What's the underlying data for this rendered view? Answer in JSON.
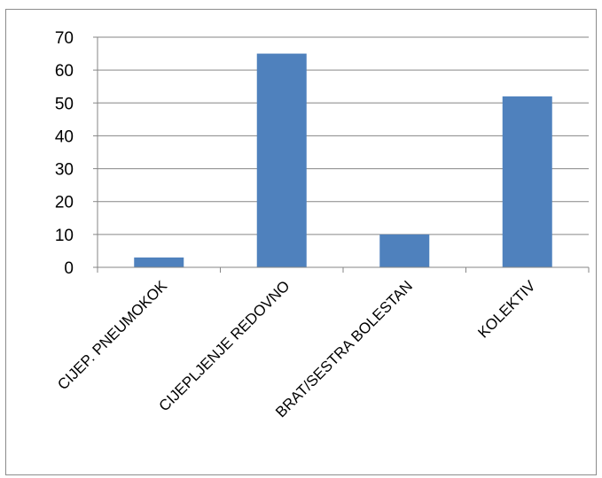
{
  "chart_data": {
    "type": "bar",
    "title": "",
    "xlabel": "",
    "ylabel": "",
    "categories": [
      "CIJEP. PNEUMOKOK",
      "CIJEPLJENJE REDOVNO",
      "BRAT/SESTRA BOLESTAN",
      "KOLEKTIV"
    ],
    "values": [
      3,
      65,
      10,
      52
    ],
    "ylim": [
      0,
      70
    ],
    "yticks": [
      0,
      10,
      20,
      30,
      40,
      50,
      60,
      70
    ],
    "grid": true,
    "legend": "none",
    "bar_color": "#4f81bd",
    "grid_color": "#868686"
  }
}
